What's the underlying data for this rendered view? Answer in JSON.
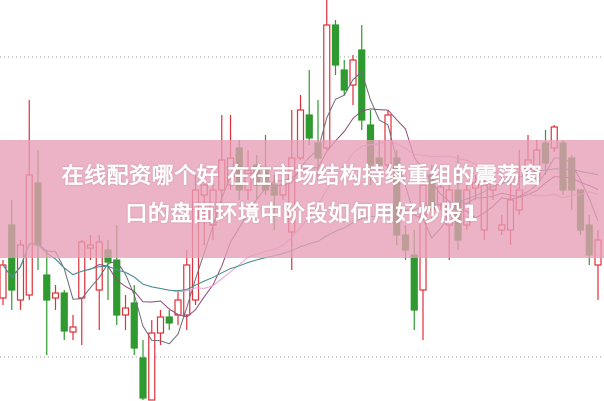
{
  "chart_data": {
    "type": "candlestick",
    "title": "",
    "xlabel": "",
    "ylabel": "",
    "ylim": [
      0,
      400
    ],
    "grid": "dotted horizontal",
    "colors": {
      "up": "#e0303a",
      "down": "#2f9a2f",
      "ma_short": "#6b6b7a",
      "ma_mid": "#8e4a78",
      "ma_long": "#e8a0d8",
      "ma_longer": "#3e8f8a"
    },
    "candles": [
      {
        "o": 102,
        "c": 135,
        "h": 140,
        "l": 95
      },
      {
        "o": 175,
        "c": 110,
        "h": 200,
        "l": 90
      },
      {
        "o": 100,
        "c": 155,
        "h": 160,
        "l": 90
      },
      {
        "o": 105,
        "c": 225,
        "h": 300,
        "l": 100
      },
      {
        "o": 217,
        "c": 155,
        "h": 250,
        "l": 130
      },
      {
        "o": 125,
        "c": 100,
        "h": 150,
        "l": 45
      },
      {
        "o": 102,
        "c": 107,
        "h": 115,
        "l": 90
      },
      {
        "o": 107,
        "c": 69,
        "h": 110,
        "l": 60
      },
      {
        "o": 68,
        "c": 73,
        "h": 85,
        "l": 60
      },
      {
        "o": 102,
        "c": 158,
        "h": 160,
        "l": 55
      },
      {
        "o": 152,
        "c": 155,
        "h": 165,
        "l": 140
      },
      {
        "o": 110,
        "c": 158,
        "h": 165,
        "l": 70
      },
      {
        "o": 150,
        "c": 138,
        "h": 160,
        "l": 100
      },
      {
        "o": 140,
        "c": 85,
        "h": 175,
        "l": 75
      },
      {
        "o": 85,
        "c": 92,
        "h": 105,
        "l": 70
      },
      {
        "o": 97,
        "c": 52,
        "h": 115,
        "l": 45
      },
      {
        "o": 42,
        "c": 2,
        "h": 60,
        "l": -40
      },
      {
        "o": -15,
        "c": 67,
        "h": 80,
        "l": -40
      },
      {
        "o": 67,
        "c": 83,
        "h": 90,
        "l": 55
      },
      {
        "o": 83,
        "c": 77,
        "h": 90,
        "l": 70
      },
      {
        "o": 85,
        "c": 100,
        "h": 110,
        "l": 75
      },
      {
        "o": 85,
        "c": 135,
        "h": 150,
        "l": 70
      },
      {
        "o": 100,
        "c": 210,
        "h": 225,
        "l": 95
      },
      {
        "o": 205,
        "c": 215,
        "h": 225,
        "l": 155
      },
      {
        "o": 175,
        "c": 210,
        "h": 220,
        "l": 160
      },
      {
        "o": 210,
        "c": 240,
        "h": 285,
        "l": 195
      },
      {
        "o": 215,
        "c": 242,
        "h": 285,
        "l": 210
      },
      {
        "o": 252,
        "c": 210,
        "h": 260,
        "l": 200
      },
      {
        "o": 210,
        "c": 230,
        "h": 250,
        "l": 200
      },
      {
        "o": 235,
        "c": 215,
        "h": 245,
        "l": 200
      },
      {
        "o": 232,
        "c": 210,
        "h": 265,
        "l": 205
      },
      {
        "o": 215,
        "c": 205,
        "h": 225,
        "l": 170
      },
      {
        "o": 205,
        "c": 215,
        "h": 225,
        "l": 200
      },
      {
        "o": 168,
        "c": 242,
        "h": 290,
        "l": 130
      },
      {
        "o": 242,
        "c": 290,
        "h": 305,
        "l": 240
      },
      {
        "o": 285,
        "c": 262,
        "h": 330,
        "l": 255
      },
      {
        "o": 257,
        "c": 242,
        "h": 300,
        "l": 220
      },
      {
        "o": 252,
        "c": 375,
        "h": 400,
        "l": 250
      },
      {
        "o": 375,
        "c": 335,
        "h": 380,
        "l": 325
      },
      {
        "o": 330,
        "c": 310,
        "h": 340,
        "l": 305
      },
      {
        "o": 315,
        "c": 340,
        "h": 345,
        "l": 295
      },
      {
        "o": 350,
        "c": 280,
        "h": 375,
        "l": 270
      },
      {
        "o": 275,
        "c": 235,
        "h": 290,
        "l": 215
      },
      {
        "o": 242,
        "c": 235,
        "h": 260,
        "l": 230
      },
      {
        "o": 235,
        "c": 285,
        "h": 290,
        "l": 225
      },
      {
        "o": 242,
        "c": 165,
        "h": 250,
        "l": 155
      },
      {
        "o": 165,
        "c": 150,
        "h": 175,
        "l": 140
      },
      {
        "o": 145,
        "c": 90,
        "h": 170,
        "l": 70
      },
      {
        "o": 110,
        "c": 215,
        "h": 220,
        "l": 60
      },
      {
        "o": 225,
        "c": 190,
        "h": 235,
        "l": 180
      },
      {
        "o": 195,
        "c": 213,
        "h": 220,
        "l": 190
      },
      {
        "o": 175,
        "c": 210,
        "h": 230,
        "l": 140
      },
      {
        "o": 210,
        "c": 160,
        "h": 245,
        "l": 150
      },
      {
        "o": 175,
        "c": 210,
        "h": 215,
        "l": 170
      },
      {
        "o": 212,
        "c": 217,
        "h": 225,
        "l": 200
      },
      {
        "o": 170,
        "c": 215,
        "h": 220,
        "l": 160
      },
      {
        "o": 210,
        "c": 217,
        "h": 222,
        "l": 200
      },
      {
        "o": 170,
        "c": 175,
        "h": 185,
        "l": 165
      },
      {
        "o": 170,
        "c": 200,
        "h": 220,
        "l": 155
      },
      {
        "o": 190,
        "c": 210,
        "h": 250,
        "l": 185
      },
      {
        "o": 228,
        "c": 240,
        "h": 265,
        "l": 220
      },
      {
        "o": 222,
        "c": 250,
        "h": 260,
        "l": 220
      },
      {
        "o": 257,
        "c": 237,
        "h": 270,
        "l": 225
      },
      {
        "o": 252,
        "c": 273,
        "h": 275,
        "l": 248
      },
      {
        "o": 257,
        "c": 210,
        "h": 260,
        "l": 205
      },
      {
        "o": 242,
        "c": 210,
        "h": 245,
        "l": 190
      },
      {
        "o": 210,
        "c": 170,
        "h": 210,
        "l": 165
      },
      {
        "o": 175,
        "c": 145,
        "h": 185,
        "l": 135
      },
      {
        "o": 135,
        "c": 160,
        "h": 170,
        "l": 100
      }
    ]
  },
  "overlay": {
    "line1": "在线配资哪个好 在在市场结构持续重组的震荡窗",
    "line2": "口的盘面环境中阶段如何用好炒股1",
    "banner_color": "#e79eb6"
  }
}
